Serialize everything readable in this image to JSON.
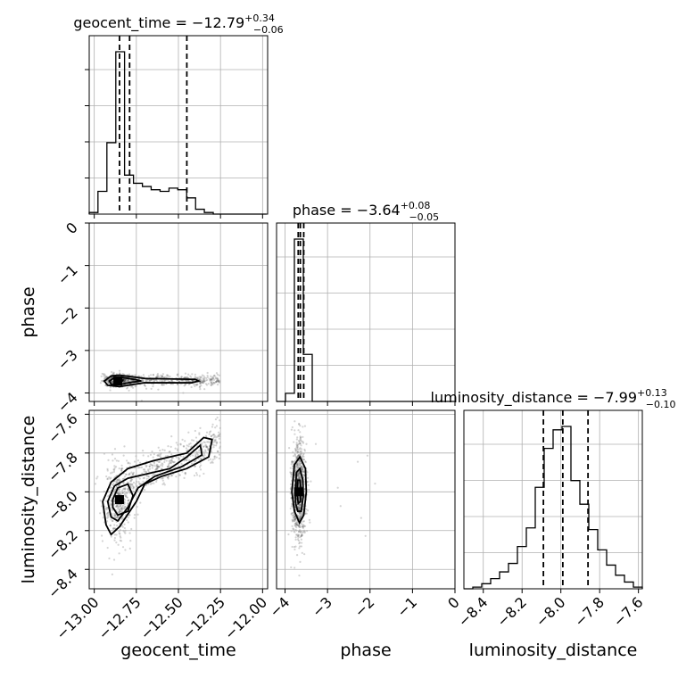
{
  "chart_data": {
    "type": "corner",
    "parameters": [
      {
        "name": "geocent_time",
        "label": "geocent_time",
        "range": [
          -13.03,
          -11.97
        ],
        "ticks": [
          -13.0,
          -12.75,
          -12.5,
          -12.25,
          -12.0
        ],
        "tick_labels": [
          "−13.00",
          "−12.75",
          "−12.50",
          "−12.25",
          "−12.00"
        ],
        "median": -12.79,
        "plus": "+0.34",
        "minus": "−0.06",
        "quantiles": [
          -12.85,
          -12.79,
          -12.45
        ],
        "title": "geocent_time = −12.79"
      },
      {
        "name": "phase",
        "label": "phase",
        "range": [
          -4.2,
          0.0
        ],
        "ticks": [
          -4,
          -3,
          -2,
          -1,
          0
        ],
        "tick_labels": [
          "−4",
          "−3",
          "−2",
          "−1",
          "0"
        ],
        "median": -3.64,
        "plus": "+0.08",
        "minus": "−0.05",
        "quantiles": [
          -3.69,
          -3.64,
          -3.56
        ],
        "title": "phase = −3.64"
      },
      {
        "name": "luminosity_distance",
        "label": "luminosity_distance",
        "range": [
          -8.5,
          -7.58
        ],
        "ticks": [
          -8.4,
          -8.2,
          -8.0,
          -7.8,
          -7.6
        ],
        "tick_labels": [
          "−8.4",
          "−8.2",
          "−8.0",
          "−7.8",
          "−7.6"
        ],
        "median": -7.99,
        "plus": "+0.13",
        "minus": "−0.10",
        "quantiles": [
          -8.09,
          -7.99,
          -7.86
        ],
        "title": "luminosity_distance = −7.99"
      }
    ],
    "hist_geocent_time": {
      "edges": [
        -13.03,
        -12.978,
        -12.925,
        -12.872,
        -12.82,
        -12.767,
        -12.714,
        -12.662,
        -12.609,
        -12.556,
        -12.504,
        -12.451,
        -12.398,
        -12.346,
        -12.293,
        -12.24,
        -12.188,
        -12.135,
        -12.082,
        -12.03,
        -11.977
      ],
      "counts": [
        0.01,
        0.14,
        0.44,
        1.0,
        0.24,
        0.19,
        0.17,
        0.15,
        0.14,
        0.16,
        0.15,
        0.1,
        0.03,
        0.01,
        0.0,
        0.0,
        0.0,
        0.0,
        0.0,
        0.0
      ]
    },
    "hist_phase": {
      "edges": [
        -4.2,
        -3.99,
        -3.78,
        -3.57,
        -3.36,
        -3.15,
        -2.94,
        -2.73,
        -2.52,
        -2.31,
        -2.1,
        -1.89,
        -1.68,
        -1.47,
        -1.26,
        -1.05,
        -0.84,
        -0.63,
        -0.42,
        -0.21,
        0.0
      ],
      "counts": [
        0.0,
        0.05,
        1.0,
        0.29,
        0.0,
        0.0,
        0.0,
        0.0,
        0.0,
        0.0,
        0.0,
        0.0,
        0.0,
        0.0,
        0.0,
        0.0,
        0.0,
        0.0,
        0.0,
        0.0
      ]
    },
    "hist_luminosity_distance": {
      "edges": [
        -8.5,
        -8.454,
        -8.408,
        -8.362,
        -8.316,
        -8.27,
        -8.224,
        -8.178,
        -8.132,
        -8.086,
        -8.04,
        -7.994,
        -7.948,
        -7.902,
        -7.856,
        -7.81,
        -7.764,
        -7.718,
        -7.672,
        -7.626,
        -7.58
      ],
      "counts": [
        0.0,
        0.01,
        0.03,
        0.06,
        0.1,
        0.15,
        0.25,
        0.36,
        0.6,
        0.83,
        0.94,
        0.96,
        0.64,
        0.5,
        0.35,
        0.23,
        0.14,
        0.08,
        0.04,
        0.01
      ]
    },
    "contours_geocent_time_phase": {
      "center": [
        -12.86,
        -3.72
      ],
      "levels": [
        [
          [
            -12.94,
            -3.72
          ],
          [
            -12.9,
            -3.6
          ],
          [
            -12.85,
            -3.58
          ],
          [
            -12.7,
            -3.66
          ],
          [
            -12.4,
            -3.68
          ],
          [
            -12.38,
            -3.72
          ],
          [
            -12.42,
            -3.76
          ],
          [
            -12.7,
            -3.76
          ],
          [
            -12.85,
            -3.85
          ],
          [
            -12.92,
            -3.82
          ]
        ],
        [
          [
            -12.91,
            -3.72
          ],
          [
            -12.88,
            -3.64
          ],
          [
            -12.84,
            -3.63
          ],
          [
            -12.75,
            -3.69
          ],
          [
            -12.72,
            -3.72
          ],
          [
            -12.78,
            -3.75
          ],
          [
            -12.85,
            -3.8
          ],
          [
            -12.9,
            -3.79
          ]
        ],
        [
          [
            -12.88,
            -3.72
          ],
          [
            -12.86,
            -3.68
          ],
          [
            -12.83,
            -3.7
          ],
          [
            -12.84,
            -3.75
          ],
          [
            -12.87,
            -3.76
          ]
        ]
      ]
    },
    "contours_geocent_time_luminosity_distance": {
      "center": [
        -12.85,
        -8.04
      ],
      "levels": [
        [
          [
            -12.95,
            -8.05
          ],
          [
            -12.9,
            -7.95
          ],
          [
            -12.8,
            -7.88
          ],
          [
            -12.65,
            -7.84
          ],
          [
            -12.45,
            -7.8
          ],
          [
            -12.35,
            -7.72
          ],
          [
            -12.3,
            -7.73
          ],
          [
            -12.32,
            -7.82
          ],
          [
            -12.45,
            -7.88
          ],
          [
            -12.6,
            -7.92
          ],
          [
            -12.7,
            -7.96
          ],
          [
            -12.75,
            -8.05
          ],
          [
            -12.85,
            -8.18
          ],
          [
            -12.9,
            -8.22
          ],
          [
            -12.93,
            -8.17
          ]
        ],
        [
          [
            -12.92,
            -8.05
          ],
          [
            -12.88,
            -7.97
          ],
          [
            -12.8,
            -7.93
          ],
          [
            -12.7,
            -7.91
          ],
          [
            -12.55,
            -7.88
          ],
          [
            -12.45,
            -7.82
          ],
          [
            -12.37,
            -7.76
          ],
          [
            -12.36,
            -7.81
          ],
          [
            -12.48,
            -7.87
          ],
          [
            -12.64,
            -7.92
          ],
          [
            -12.74,
            -7.98
          ],
          [
            -12.8,
            -8.08
          ],
          [
            -12.86,
            -8.15
          ],
          [
            -12.9,
            -8.13
          ]
        ],
        [
          [
            -12.89,
            -8.04
          ],
          [
            -12.86,
            -7.98
          ],
          [
            -12.8,
            -7.96
          ],
          [
            -12.77,
            -8.02
          ],
          [
            -12.8,
            -8.1
          ],
          [
            -12.86,
            -8.12
          ],
          [
            -12.89,
            -8.08
          ]
        ]
      ]
    },
    "contours_phase_luminosity_distance": {
      "center": [
        -3.68,
        -8.0
      ],
      "levels": [
        [
          [
            -3.84,
            -8.0
          ],
          [
            -3.78,
            -7.86
          ],
          [
            -3.65,
            -7.82
          ],
          [
            -3.52,
            -7.88
          ],
          [
            -3.5,
            -8.0
          ],
          [
            -3.56,
            -8.12
          ],
          [
            -3.66,
            -8.16
          ],
          [
            -3.78,
            -8.1
          ]
        ],
        [
          [
            -3.76,
            -8.0
          ],
          [
            -3.73,
            -7.9
          ],
          [
            -3.65,
            -7.88
          ],
          [
            -3.58,
            -7.94
          ],
          [
            -3.57,
            -8.02
          ],
          [
            -3.62,
            -8.1
          ],
          [
            -3.7,
            -8.1
          ],
          [
            -3.75,
            -8.06
          ]
        ],
        [
          [
            -3.72,
            -8.0
          ],
          [
            -3.7,
            -7.94
          ],
          [
            -3.65,
            -7.94
          ],
          [
            -3.62,
            -7.99
          ],
          [
            -3.64,
            -8.05
          ],
          [
            -3.69,
            -8.06
          ]
        ]
      ]
    },
    "grid": true
  }
}
